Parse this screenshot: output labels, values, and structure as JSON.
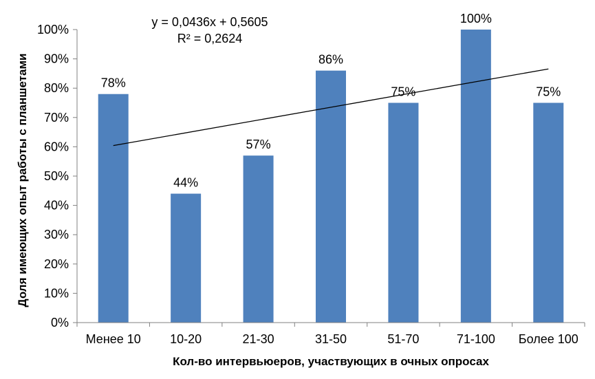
{
  "chart_data": {
    "type": "bar",
    "categories": [
      "Менее 10",
      "10-20",
      "21-30",
      "31-50",
      "51-70",
      "71-100",
      "Более 100"
    ],
    "values": [
      78,
      44,
      57,
      86,
      75,
      100,
      75
    ],
    "data_labels": [
      "78%",
      "44%",
      "57%",
      "86%",
      "75%",
      "100%",
      "75%"
    ],
    "xlabel": "Кол-во интервьюеров, участвующих в очных опросах",
    "ylabel": "Доля имеющих опыт работы с планшетами",
    "ylim": [
      0,
      100
    ],
    "yticks": [
      0,
      10,
      20,
      30,
      40,
      50,
      60,
      70,
      80,
      90,
      100
    ],
    "ytick_labels": [
      "0%",
      "10%",
      "20%",
      "30%",
      "40%",
      "50%",
      "60%",
      "70%",
      "80%",
      "90%",
      "100%"
    ],
    "trendline": {
      "slope": 0.0436,
      "intercept": 0.5605,
      "equation": "y = 0,0436x + 0,5605",
      "r2": "R² = 0,2624"
    },
    "bar_color": "#4f81bd",
    "grid": false,
    "legend": "none"
  }
}
